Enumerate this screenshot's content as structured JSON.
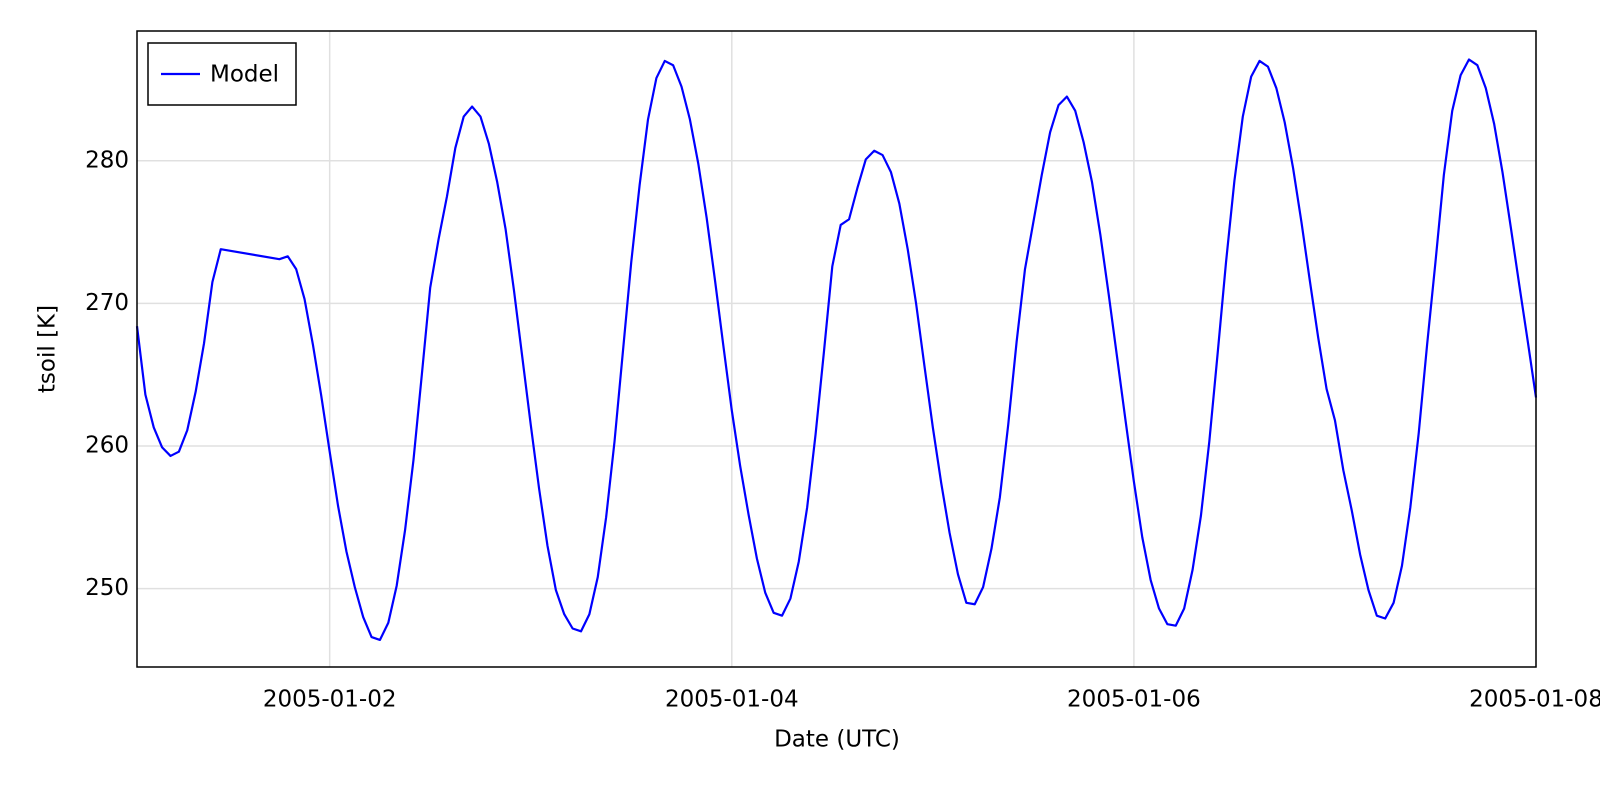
{
  "chart_data": {
    "type": "line",
    "xlabel": "Date (UTC)",
    "ylabel": "tsoil [K]",
    "x": [
      1,
      2,
      3,
      4,
      5,
      6,
      7,
      8,
      9,
      10,
      11,
      18,
      19,
      20,
      21,
      22,
      23,
      24,
      25,
      26,
      27,
      28,
      29,
      30,
      31,
      32,
      33,
      34,
      35,
      36,
      37,
      38,
      39,
      40,
      41,
      42,
      43,
      44,
      45,
      46,
      47,
      48,
      49,
      50,
      51,
      52,
      53,
      54,
      55,
      56,
      57,
      58,
      59,
      60,
      61,
      62,
      63,
      64,
      65,
      66,
      67,
      68,
      69,
      70,
      71,
      72,
      73,
      74,
      75,
      76,
      77,
      78,
      79,
      80,
      81,
      82,
      83,
      84,
      85,
      86,
      87,
      88,
      89,
      90,
      91,
      92,
      93,
      94,
      95,
      96,
      97,
      98,
      99,
      100,
      101,
      102,
      103,
      104,
      105,
      106,
      107,
      108,
      109,
      110,
      111,
      112,
      113,
      114,
      115,
      116,
      117,
      118,
      119,
      120,
      121,
      122,
      123,
      124,
      125,
      126,
      127,
      128,
      129,
      130,
      131,
      132,
      133,
      134,
      135,
      136,
      137,
      138,
      139,
      140,
      141,
      142,
      143,
      144,
      145,
      146,
      147,
      148,
      149,
      150,
      151,
      152,
      153,
      154,
      155,
      156,
      157,
      158,
      159,
      160,
      161,
      162,
      163,
      164,
      165,
      166,
      167,
      168
    ],
    "series": [
      {
        "name": "Model",
        "color": "#0000ff",
        "values": [
          268.4,
          263.6,
          261.3,
          259.9,
          259.3,
          259.6,
          261.1,
          263.8,
          267.2,
          271.5,
          273.8,
          273.1,
          273.3,
          272.4,
          270.3,
          267.1,
          263.5,
          259.6,
          255.8,
          252.6,
          250.1,
          248.0,
          246.6,
          246.4,
          247.6,
          250.2,
          254.1,
          259.0,
          265.0,
          271.1,
          274.5,
          277.5,
          280.9,
          283.1,
          283.8,
          283.1,
          281.2,
          278.5,
          275.2,
          270.9,
          266.2,
          261.5,
          257.0,
          253.0,
          249.9,
          248.2,
          247.2,
          247.0,
          248.2,
          250.8,
          255.0,
          260.3,
          266.6,
          272.9,
          278.3,
          282.9,
          285.8,
          287.0,
          286.7,
          285.2,
          282.9,
          279.8,
          276.0,
          271.6,
          267.0,
          262.5,
          258.6,
          255.2,
          252.1,
          249.7,
          248.3,
          248.1,
          249.3,
          251.9,
          255.7,
          260.8,
          266.6,
          272.6,
          275.5,
          275.9,
          278.1,
          280.1,
          280.7,
          280.4,
          279.2,
          277.0,
          273.8,
          270.0,
          265.6,
          261.3,
          257.4,
          253.9,
          251.0,
          249.0,
          248.9,
          250.1,
          252.8,
          256.4,
          261.5,
          267.3,
          272.4,
          275.7,
          279.0,
          282.0,
          283.9,
          284.5,
          283.5,
          281.3,
          278.5,
          274.8,
          270.6,
          266.2,
          261.8,
          257.5,
          253.6,
          250.6,
          248.6,
          247.5,
          247.4,
          248.6,
          251.3,
          255.1,
          260.3,
          266.5,
          272.9,
          278.6,
          283.1,
          285.9,
          287.0,
          286.6,
          285.1,
          282.7,
          279.5,
          275.7,
          271.6,
          267.6,
          264.0,
          261.8,
          258.3,
          255.5,
          252.4,
          249.9,
          248.1,
          247.9,
          249.0,
          251.6,
          255.7,
          260.9,
          267.1,
          272.9,
          279.0,
          283.5,
          286.0,
          287.1,
          286.7,
          285.1,
          282.6,
          279.2,
          275.3,
          271.3,
          267.4,
          263.4
        ]
      }
    ],
    "xlim": [
      1,
      168
    ],
    "xticks": [
      {
        "value": 24,
        "label": "2005-01-02"
      },
      {
        "value": 72,
        "label": "2005-01-04"
      },
      {
        "value": 120,
        "label": "2005-01-06"
      },
      {
        "value": 168,
        "label": "2005-01-08"
      }
    ],
    "ylim": [
      244.5,
      289.1
    ],
    "yticks": [
      250,
      260,
      270,
      280
    ],
    "grid": true,
    "legend": "upper-left"
  }
}
